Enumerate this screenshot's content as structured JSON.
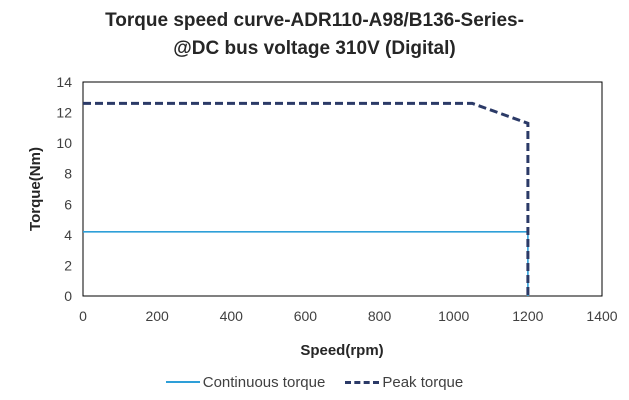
{
  "chart_data": {
    "type": "line",
    "title_line1": "Torque speed curve-ADR110-A98/B136-Series-",
    "title_line2": "@DC bus voltage 310V (Digital)",
    "xlabel": "Speed(rpm)",
    "ylabel": "Torque(Nm)",
    "xlim": [
      0,
      1400
    ],
    "ylim": [
      0,
      14
    ],
    "xticks": [
      "0",
      "200",
      "400",
      "600",
      "800",
      "1000",
      "1200",
      "1400"
    ],
    "yticks": [
      "0",
      "2",
      "4",
      "6",
      "8",
      "10",
      "12",
      "14"
    ],
    "grid": false,
    "legend_position": "bottom",
    "series": [
      {
        "name": "Continuous torque",
        "style": "solid",
        "color": "#2e9fd8",
        "x": [
          0,
          1200,
          1200
        ],
        "y": [
          4.2,
          4.2,
          0
        ]
      },
      {
        "name": "Peak torque",
        "style": "dashed",
        "color": "#2b3a67",
        "x": [
          0,
          1050,
          1200,
          1200
        ],
        "y": [
          12.6,
          12.6,
          11.3,
          0
        ]
      }
    ]
  }
}
